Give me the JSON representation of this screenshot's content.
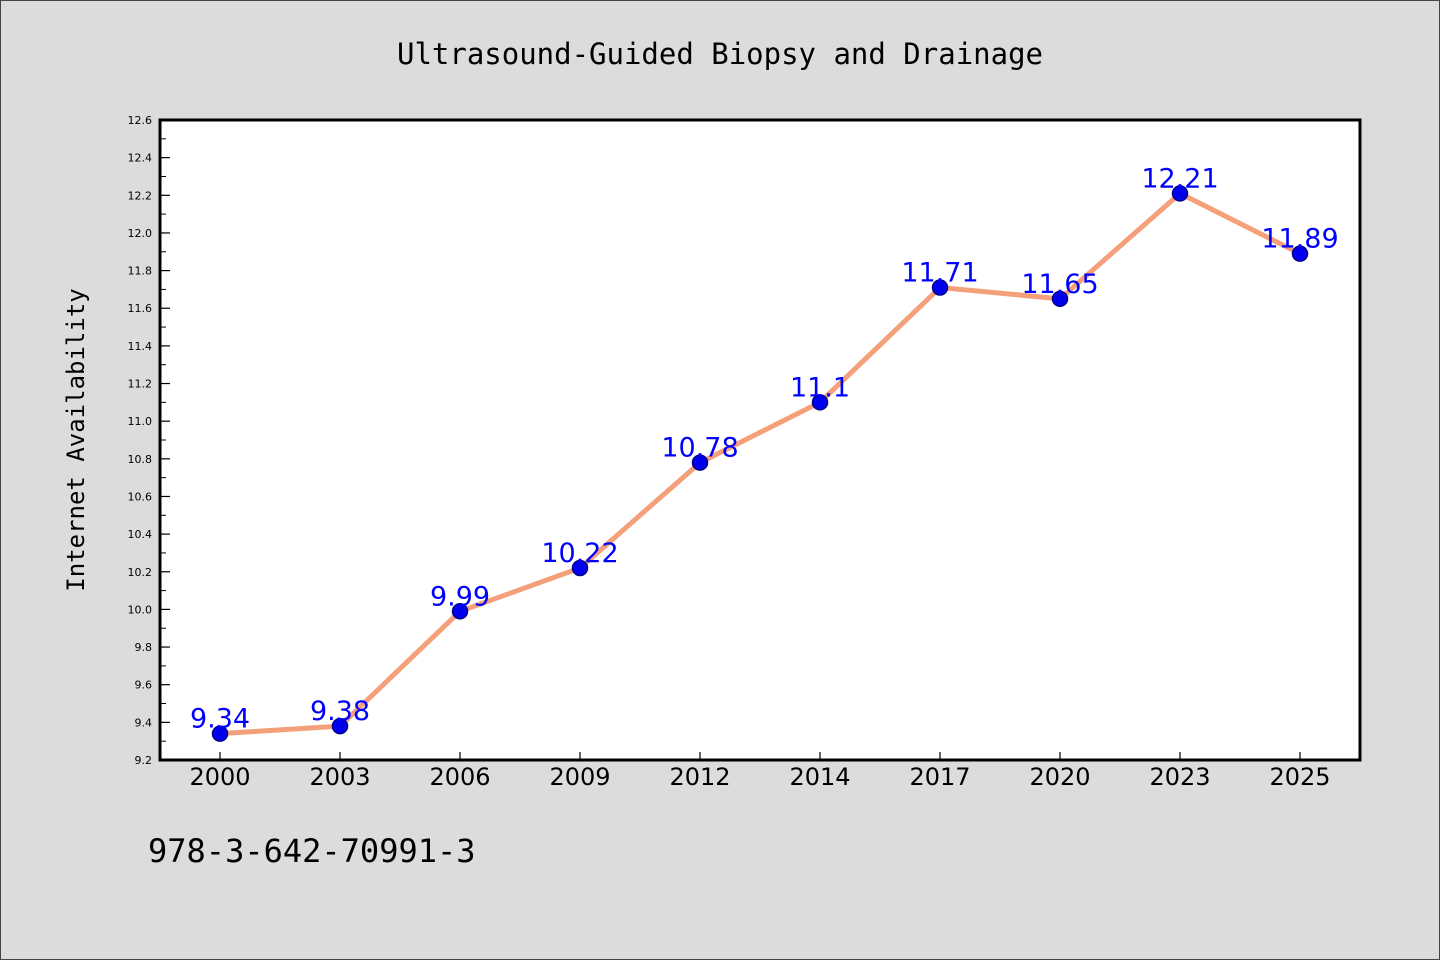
{
  "chart_data": {
    "type": "line",
    "title": "Ultrasound-Guided Biopsy and Drainage",
    "xlabel": "",
    "ylabel": "Internet Availability",
    "categories": [
      "2000",
      "2003",
      "2006",
      "2009",
      "2012",
      "2014",
      "2017",
      "2020",
      "2023",
      "2025"
    ],
    "series": [
      {
        "values": [
          9.34,
          9.38,
          9.99,
          10.22,
          10.78,
          11.1,
          11.71,
          11.65,
          12.21,
          11.89
        ],
        "data_labels": [
          "9.34",
          "9.38",
          "9.99",
          "10.22",
          "10.78",
          "11.1",
          "11.71",
          "11.65",
          "12.21",
          "11.89"
        ]
      }
    ],
    "ylim": [
      9.2,
      12.6
    ],
    "yticks": [
      "9.2",
      "9.4",
      "9.6",
      "9.8",
      "10.0",
      "10.2",
      "10.4",
      "10.6",
      "10.8",
      "11.0",
      "11.2",
      "11.4",
      "11.6",
      "11.8",
      "12.0",
      "12.2",
      "12.4",
      "12.6"
    ],
    "grid": false,
    "legend": "none"
  },
  "footer_text": "978-3-642-70991-3",
  "colors": {
    "line": "#f4a07a",
    "marker_fill": "#0000ee",
    "marker_edge": "#00008b",
    "data_label": "#0000ff",
    "background": "#dcdcdc",
    "plot_background": "#ffffff"
  }
}
